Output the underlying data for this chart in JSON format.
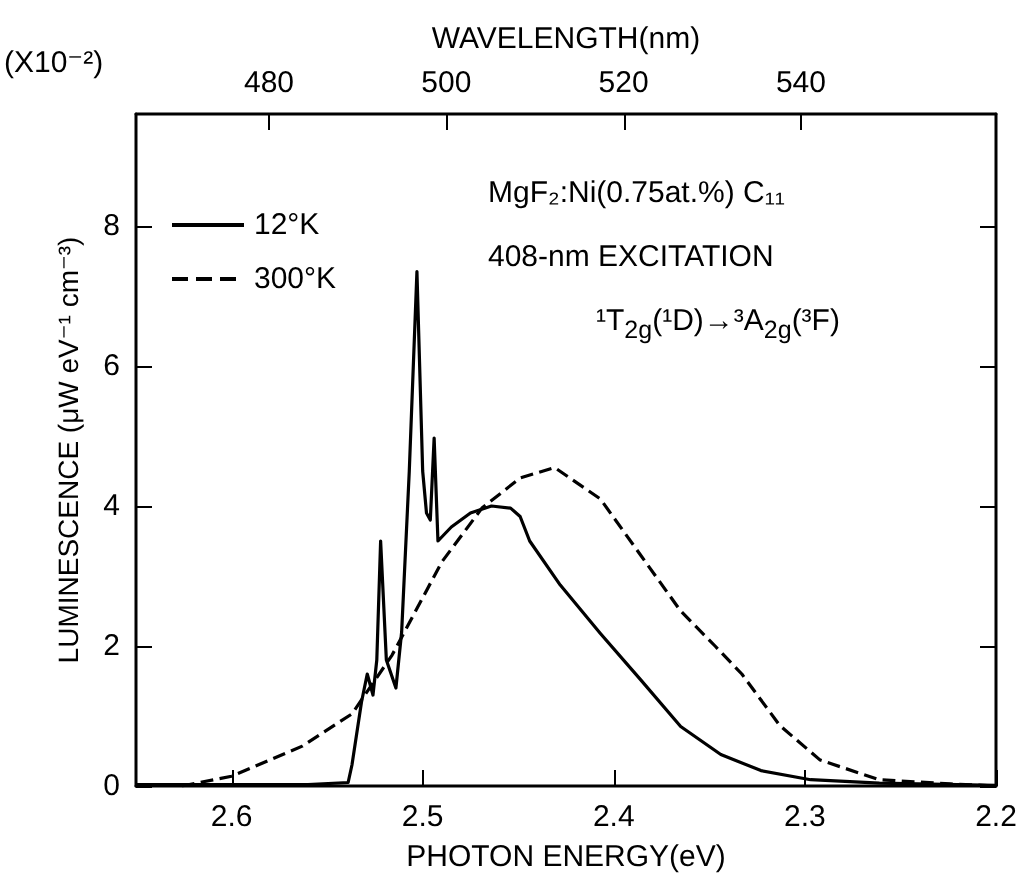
{
  "chart_data": {
    "type": "line",
    "xlabel": "PHOTON ENERGY(eV)",
    "ylabel": "LUMINESCENCE (μW eV⁻¹ cm⁻³)",
    "x2label": "WAVELENGTH(nm)",
    "xlim": [
      2.65,
      2.2
    ],
    "xticks": [
      2.6,
      2.5,
      2.4,
      2.3,
      2.2
    ],
    "x2lim": [
      465,
      562
    ],
    "x2ticks": [
      480,
      500,
      520,
      540
    ],
    "ylim": [
      0,
      9.6
    ],
    "yticks": [
      0,
      2,
      4,
      6,
      8
    ],
    "grid": false,
    "legend": "top left",
    "marker": "none",
    "annotations": [
      "(X10⁻²)",
      "MgF₂:Ni(0.75at.%) C₁₁",
      "408-nm EXCITATION",
      "¹T$_{2g}$(¹D)→³A$_{2g}$(³F)"
    ],
    "series": [
      {
        "name": "12°K",
        "color": "#000000",
        "line_style": "solid",
        "x": [
          2.65,
          2.6,
          2.56,
          2.539,
          2.537,
          2.532,
          2.529,
          2.526,
          2.524,
          2.522,
          2.519,
          2.514,
          2.511,
          2.507,
          2.503,
          2.5,
          2.498,
          2.496,
          2.494,
          2.492,
          2.485,
          2.475,
          2.464,
          2.454,
          2.449,
          2.444,
          2.428,
          2.407,
          2.386,
          2.365,
          2.344,
          2.323,
          2.297,
          2.261,
          2.2
        ],
        "values": [
          0.02,
          0.02,
          0.02,
          0.05,
          0.3,
          1.2,
          1.6,
          1.3,
          1.8,
          3.5,
          1.8,
          1.4,
          2.2,
          4.5,
          7.35,
          4.5,
          3.9,
          3.8,
          4.97,
          3.5,
          3.7,
          3.9,
          4.0,
          3.97,
          3.85,
          3.5,
          2.87,
          2.18,
          1.52,
          0.85,
          0.45,
          0.22,
          0.09,
          0.04,
          0.01
        ]
      },
      {
        "name": "300°K",
        "color": "#000000",
        "line_style": "dashed",
        "x": [
          2.626,
          2.6,
          2.563,
          2.537,
          2.516,
          2.49,
          2.469,
          2.449,
          2.431,
          2.407,
          2.386,
          2.365,
          2.347,
          2.333,
          2.313,
          2.292,
          2.261,
          2.224,
          2.2
        ],
        "values": [
          0.0,
          0.14,
          0.57,
          1.03,
          1.87,
          3.2,
          3.97,
          4.4,
          4.55,
          4.1,
          3.3,
          2.5,
          2.0,
          1.6,
          0.86,
          0.37,
          0.09,
          0.03,
          0.0
        ]
      }
    ]
  }
}
